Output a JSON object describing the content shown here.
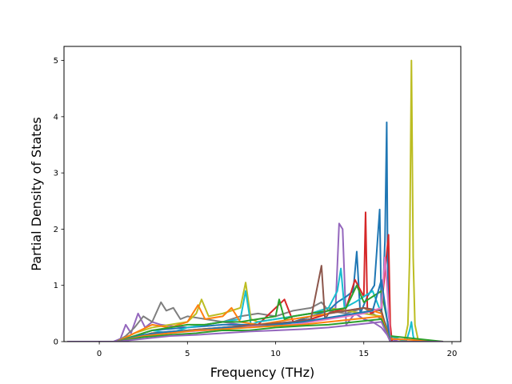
{
  "chart_data": {
    "type": "line",
    "title": "",
    "xlabel": "Frequency (THz)",
    "ylabel": "Partial Density of States",
    "xlim": [
      -2.0,
      20.5
    ],
    "ylim": [
      0,
      5.25
    ],
    "xticks": [
      0,
      5,
      10,
      15,
      20
    ],
    "yticks": [
      0,
      1,
      2,
      3,
      4,
      5
    ],
    "xtick_labels": [
      "0",
      "5",
      "10",
      "15",
      "20"
    ],
    "ytick_labels": [
      "0",
      "1",
      "2",
      "3",
      "4",
      "5"
    ],
    "grid": false,
    "legend": "none",
    "colors": [
      "#1f77b4",
      "#ff7f0e",
      "#2ca02c",
      "#d62728",
      "#9467bd",
      "#8c564b",
      "#e377c2",
      "#7f7f7f",
      "#bcbd22",
      "#17becf"
    ],
    "series": [
      {
        "color": "#9467bd",
        "x": [
          -1.8,
          0.8,
          1.2,
          1.5,
          1.8,
          2.2,
          2.6,
          3.0,
          3.5,
          4.0,
          5.0,
          6.0,
          7.0,
          8.0,
          9.0,
          10.0,
          11.0,
          12.0,
          12.5,
          13.0,
          13.4,
          13.6,
          13.8,
          14.0,
          14.5,
          15.0,
          15.5,
          16.0,
          16.5,
          17.0,
          19.5
        ],
        "y": [
          0,
          0,
          0.05,
          0.3,
          0.15,
          0.5,
          0.25,
          0.35,
          0.3,
          0.28,
          0.25,
          0.3,
          0.35,
          0.3,
          0.28,
          0.3,
          0.35,
          0.4,
          0.45,
          0.5,
          0.6,
          2.1,
          2.0,
          0.3,
          0.5,
          0.4,
          0.35,
          0.25,
          0.05,
          0,
          0
        ]
      },
      {
        "color": "#7f7f7f",
        "x": [
          -1.8,
          1.0,
          1.5,
          2.0,
          2.5,
          3.0,
          3.5,
          3.8,
          4.2,
          4.6,
          5.0,
          6.0,
          7.0,
          8.0,
          9.0,
          10.0,
          11.0,
          12.0,
          12.6,
          13.0,
          14.0,
          15.0,
          16.0,
          16.5,
          19.5
        ],
        "y": [
          0,
          0,
          0.1,
          0.25,
          0.45,
          0.35,
          0.7,
          0.55,
          0.6,
          0.4,
          0.45,
          0.4,
          0.35,
          0.45,
          0.5,
          0.45,
          0.55,
          0.6,
          0.7,
          0.55,
          0.5,
          0.6,
          0.4,
          0,
          0
        ]
      },
      {
        "color": "#bcbd22",
        "x": [
          -1.8,
          1.0,
          2.0,
          3.0,
          4.0,
          5.0,
          5.5,
          5.8,
          6.2,
          7.0,
          8.0,
          8.3,
          8.6,
          9.0,
          10.0,
          11.0,
          12.0,
          13.0,
          14.0,
          15.0,
          16.0,
          16.5,
          17.3,
          17.5,
          17.6,
          17.7,
          17.8,
          17.9,
          18.1,
          19.5
        ],
        "y": [
          0,
          0,
          0.15,
          0.25,
          0.3,
          0.35,
          0.5,
          0.75,
          0.45,
          0.5,
          0.6,
          1.05,
          0.4,
          0.35,
          0.4,
          0.45,
          0.5,
          0.6,
          0.55,
          0.5,
          0.45,
          0.1,
          0,
          0.3,
          1.5,
          5.0,
          1.5,
          0.3,
          0,
          0
        ]
      },
      {
        "color": "#1f77b4",
        "x": [
          -1.8,
          1.0,
          3.0,
          5.0,
          7.0,
          9.0,
          11.0,
          12.0,
          13.0,
          13.5,
          14.0,
          14.4,
          14.6,
          14.8,
          15.2,
          15.6,
          15.9,
          16.0,
          16.1,
          16.2,
          16.3,
          16.35,
          16.4,
          16.5,
          16.6,
          19.5
        ],
        "y": [
          0,
          0,
          0.2,
          0.25,
          0.3,
          0.3,
          0.35,
          0.45,
          0.55,
          0.7,
          0.8,
          0.9,
          1.6,
          0.5,
          0.8,
          1.0,
          2.35,
          0.5,
          1.0,
          1.8,
          3.9,
          1.5,
          0.5,
          0.2,
          0,
          0
        ]
      },
      {
        "color": "#d62728",
        "x": [
          -1.8,
          1.0,
          3.0,
          5.0,
          7.0,
          9.0,
          10.5,
          11.0,
          12.0,
          13.0,
          14.0,
          14.5,
          15.0,
          15.1,
          15.2,
          15.4,
          16.0,
          16.4,
          16.5,
          16.6,
          19.5
        ],
        "y": [
          0,
          0,
          0.15,
          0.2,
          0.25,
          0.3,
          0.75,
          0.35,
          0.4,
          0.5,
          0.6,
          1.1,
          0.8,
          2.3,
          0.6,
          0.5,
          0.6,
          1.9,
          0.3,
          0,
          0
        ]
      },
      {
        "color": "#17becf",
        "x": [
          -1.8,
          1.0,
          2.0,
          3.0,
          4.0,
          5.0,
          6.0,
          7.0,
          8.0,
          8.3,
          8.6,
          9.0,
          10.0,
          11.0,
          12.0,
          13.0,
          13.5,
          13.7,
          13.9,
          14.5,
          15.0,
          15.5,
          16.0,
          16.5,
          17.4,
          17.6,
          17.7,
          17.8,
          17.9,
          19.5
        ],
        "y": [
          0,
          0,
          0.1,
          0.2,
          0.15,
          0.25,
          0.3,
          0.35,
          0.4,
          0.9,
          0.3,
          0.35,
          0.4,
          0.45,
          0.5,
          0.6,
          0.9,
          1.3,
          0.6,
          0.7,
          0.8,
          0.9,
          0.5,
          0.1,
          0,
          0.2,
          0.35,
          0.1,
          0,
          0
        ]
      },
      {
        "color": "#ff7f0e",
        "x": [
          -1.8,
          1.0,
          2.0,
          3.0,
          4.0,
          5.0,
          5.6,
          6.0,
          7.0,
          7.5,
          8.0,
          9.0,
          10.0,
          11.0,
          12.0,
          13.0,
          14.0,
          15.0,
          16.0,
          16.5,
          19.5
        ],
        "y": [
          0,
          0,
          0.15,
          0.3,
          0.25,
          0.35,
          0.65,
          0.4,
          0.45,
          0.6,
          0.35,
          0.3,
          0.35,
          0.4,
          0.45,
          0.5,
          0.55,
          0.6,
          0.5,
          0.05,
          0
        ]
      },
      {
        "color": "#2ca02c",
        "x": [
          -1.8,
          1.0,
          2.0,
          3.0,
          4.0,
          5.0,
          6.0,
          7.0,
          8.0,
          9.0,
          10.0,
          10.2,
          10.5,
          11.0,
          12.0,
          13.0,
          14.0,
          14.6,
          15.0,
          15.5,
          16.0,
          16.5,
          19.5
        ],
        "y": [
          0,
          0,
          0.1,
          0.2,
          0.25,
          0.3,
          0.3,
          0.35,
          0.35,
          0.4,
          0.45,
          0.75,
          0.4,
          0.45,
          0.5,
          0.55,
          0.6,
          1.0,
          0.7,
          0.8,
          0.9,
          0.1,
          0
        ]
      },
      {
        "color": "#8c564b",
        "x": [
          -1.8,
          1.0,
          3.0,
          5.0,
          7.0,
          9.0,
          11.0,
          12.0,
          12.6,
          12.8,
          13.0,
          14.0,
          15.0,
          16.0,
          16.5,
          19.5
        ],
        "y": [
          0,
          0,
          0.15,
          0.2,
          0.25,
          0.3,
          0.35,
          0.4,
          1.35,
          0.4,
          0.5,
          0.55,
          0.6,
          0.55,
          0,
          0
        ]
      },
      {
        "color": "#e377c2",
        "x": [
          -1.8,
          1.0,
          3.0,
          5.0,
          7.0,
          9.0,
          11.0,
          12.0,
          13.0,
          14.0,
          15.0,
          16.0,
          16.2,
          16.4,
          16.5,
          19.5
        ],
        "y": [
          0,
          0,
          0.12,
          0.18,
          0.22,
          0.28,
          0.3,
          0.35,
          0.4,
          0.45,
          0.5,
          0.6,
          1.5,
          0.6,
          0,
          0
        ]
      },
      {
        "color": "#1f77b4",
        "x": [
          -1.8,
          1.0,
          2.5,
          4.0,
          5.5,
          7.0,
          8.5,
          10.0,
          11.5,
          12.5,
          13.5,
          14.5,
          15.5,
          16.0,
          16.5,
          19.5
        ],
        "y": [
          0,
          0,
          0.12,
          0.18,
          0.2,
          0.25,
          0.25,
          0.3,
          0.35,
          0.4,
          0.45,
          0.5,
          0.55,
          1.1,
          0,
          0
        ]
      },
      {
        "color": "#ff7f0e",
        "x": [
          -1.8,
          1.0,
          2.5,
          4.0,
          5.5,
          7.0,
          8.5,
          10.0,
          11.5,
          13.0,
          14.5,
          16.0,
          16.5,
          19.5
        ],
        "y": [
          0,
          0,
          0.1,
          0.15,
          0.2,
          0.22,
          0.25,
          0.28,
          0.3,
          0.35,
          0.4,
          0.45,
          0,
          0
        ]
      },
      {
        "color": "#2ca02c",
        "x": [
          -1.8,
          1.0,
          2.5,
          4.0,
          5.5,
          7.0,
          8.5,
          10.0,
          11.5,
          13.0,
          14.5,
          16.0,
          16.5,
          19.5
        ],
        "y": [
          0,
          0,
          0.08,
          0.12,
          0.15,
          0.2,
          0.2,
          0.25,
          0.28,
          0.3,
          0.35,
          0.4,
          0,
          0
        ]
      },
      {
        "color": "#9467bd",
        "x": [
          -1.8,
          1.0,
          2.5,
          4.0,
          5.5,
          7.0,
          8.5,
          10.0,
          11.5,
          13.0,
          14.5,
          16.0,
          16.5,
          19.5
        ],
        "y": [
          0,
          0,
          0.05,
          0.1,
          0.12,
          0.15,
          0.18,
          0.2,
          0.22,
          0.25,
          0.3,
          0.35,
          0,
          0
        ]
      }
    ]
  }
}
